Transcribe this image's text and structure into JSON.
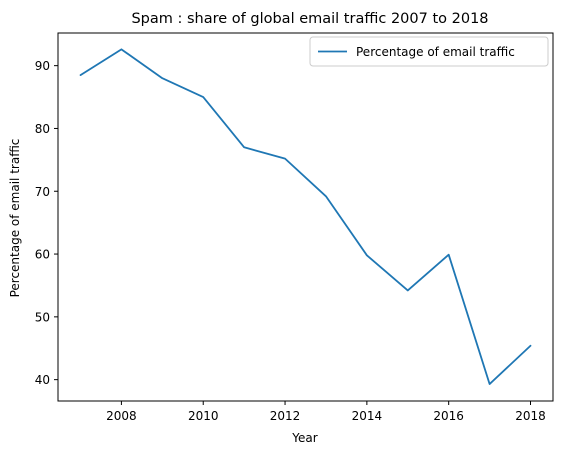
{
  "chart_data": {
    "type": "line",
    "title": "Spam : share of global email traffic 2007 to 2018",
    "xlabel": "Year",
    "ylabel": "Percentage of email traffic",
    "x": [
      2007,
      2008,
      2009,
      2010,
      2011,
      2012,
      2013,
      2014,
      2015,
      2016,
      2017,
      2018
    ],
    "series": [
      {
        "name": "Percentage of email traffic",
        "values": [
          88.5,
          92.6,
          88.0,
          85.0,
          77.0,
          75.2,
          69.2,
          59.8,
          54.2,
          59.9,
          39.3,
          45.4
        ],
        "color": "#1f77b4"
      }
    ],
    "xlim": [
      2006.45,
      2018.55
    ],
    "ylim": [
      36.6,
      95.2
    ],
    "xticks": [
      2008,
      2010,
      2012,
      2014,
      2016,
      2018
    ],
    "yticks": [
      40,
      50,
      60,
      70,
      80,
      90
    ],
    "grid": false,
    "legend_position": "top-right"
  }
}
